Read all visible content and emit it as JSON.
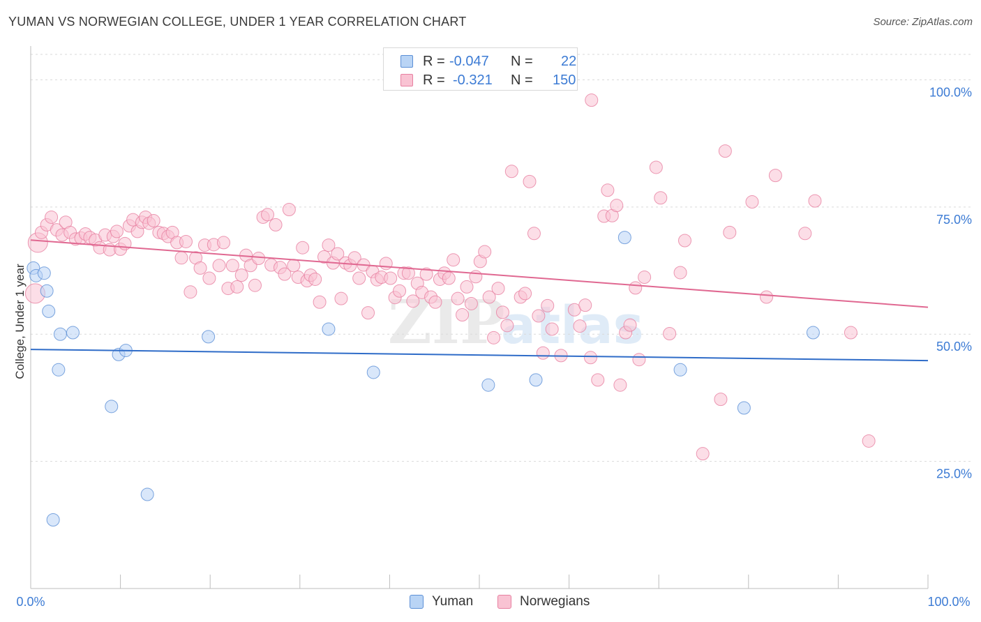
{
  "title": "YUMAN VS NORWEGIAN COLLEGE, UNDER 1 YEAR CORRELATION CHART",
  "source": "Source: ZipAtlas.com",
  "watermark": "ZIPatlas",
  "legend": {
    "rows": [
      {
        "name": "Yuman",
        "r_label": "R =",
        "r_value": "-0.047",
        "n_label": "N =",
        "n_value": "22",
        "fill": "#b9d4f5",
        "stroke": "#5b8fd6"
      },
      {
        "name": "Norwegians",
        "r_label": "R =",
        "r_value": "-0.321",
        "n_label": "N =",
        "n_value": "150",
        "fill": "#f9c3d3",
        "stroke": "#e77fa0"
      }
    ]
  },
  "chart_data": {
    "type": "scatter",
    "title": "YUMAN VS NORWEGIAN COLLEGE, UNDER 1 YEAR CORRELATION CHART",
    "xlabel": "",
    "ylabel": "College, Under 1 year",
    "xlim": [
      0,
      100
    ],
    "ylim": [
      0,
      105
    ],
    "x_tick_labels": [
      "0.0%",
      "100.0%"
    ],
    "y_tick_values": [
      25,
      50,
      75,
      100
    ],
    "y_tick_labels": [
      "25.0%",
      "50.0%",
      "75.0%",
      "100.0%"
    ],
    "grid": true,
    "series": [
      {
        "name": "Yuman",
        "color": "#5b8fd6",
        "fill": "#b9d4f5",
        "trend": {
          "x": [
            0,
            100
          ],
          "y": [
            47.0,
            44.8
          ],
          "color": "#2f6cc8"
        },
        "points": [
          [
            0.3,
            63.0
          ],
          [
            0.6,
            61.5
          ],
          [
            1.5,
            62.0
          ],
          [
            1.8,
            58.5
          ],
          [
            2.0,
            54.5
          ],
          [
            3.1,
            43.0
          ],
          [
            3.3,
            50.0
          ],
          [
            4.7,
            50.3
          ],
          [
            9.0,
            35.8
          ],
          [
            9.8,
            46.0
          ],
          [
            10.6,
            46.8
          ],
          [
            13.0,
            18.5
          ],
          [
            2.5,
            13.5
          ],
          [
            19.8,
            49.5
          ],
          [
            33.2,
            51.0
          ],
          [
            38.2,
            42.5
          ],
          [
            51.0,
            40.0
          ],
          [
            56.3,
            41.0
          ],
          [
            66.2,
            69.0
          ],
          [
            72.4,
            43.0
          ],
          [
            79.5,
            35.5
          ],
          [
            87.2,
            50.3
          ]
        ]
      },
      {
        "name": "Norwegians",
        "color": "#e77fa0",
        "fill": "#f9c3d3",
        "trend": {
          "x": [
            0,
            100
          ],
          "y": [
            68.5,
            55.3
          ],
          "color": "#e06891"
        },
        "points": [
          [
            0.5,
            58.0
          ],
          [
            0.8,
            68.0
          ],
          [
            1.2,
            70.0
          ],
          [
            1.8,
            71.5
          ],
          [
            2.3,
            73.0
          ],
          [
            2.9,
            70.5
          ],
          [
            3.5,
            69.5
          ],
          [
            3.9,
            72.0
          ],
          [
            4.4,
            70.0
          ],
          [
            5.0,
            68.7
          ],
          [
            5.6,
            68.9
          ],
          [
            6.1,
            69.7
          ],
          [
            6.6,
            69.0
          ],
          [
            7.2,
            68.5
          ],
          [
            7.7,
            67.0
          ],
          [
            8.3,
            69.5
          ],
          [
            8.8,
            66.6
          ],
          [
            9.2,
            69.2
          ],
          [
            9.6,
            70.2
          ],
          [
            10.0,
            66.7
          ],
          [
            10.5,
            67.8
          ],
          [
            11.0,
            71.3
          ],
          [
            11.4,
            72.5
          ],
          [
            11.9,
            70.2
          ],
          [
            12.4,
            72.0
          ],
          [
            12.8,
            73.0
          ],
          [
            13.2,
            71.8
          ],
          [
            13.7,
            72.3
          ],
          [
            14.3,
            70.0
          ],
          [
            14.8,
            69.8
          ],
          [
            15.3,
            69.2
          ],
          [
            15.8,
            70.0
          ],
          [
            16.3,
            68.0
          ],
          [
            16.8,
            65.0
          ],
          [
            17.3,
            68.2
          ],
          [
            17.8,
            58.3
          ],
          [
            18.4,
            65.0
          ],
          [
            18.9,
            63.0
          ],
          [
            19.4,
            67.5
          ],
          [
            19.9,
            61.0
          ],
          [
            20.4,
            67.6
          ],
          [
            21.0,
            63.5
          ],
          [
            21.5,
            68.0
          ],
          [
            22.0,
            59.0
          ],
          [
            22.5,
            63.5
          ],
          [
            23.0,
            59.3
          ],
          [
            23.5,
            61.6
          ],
          [
            24.0,
            65.5
          ],
          [
            24.5,
            63.5
          ],
          [
            25.0,
            59.6
          ],
          [
            25.4,
            64.9
          ],
          [
            25.9,
            73.0
          ],
          [
            26.4,
            73.5
          ],
          [
            26.8,
            63.6
          ],
          [
            27.3,
            71.5
          ],
          [
            27.8,
            63.1
          ],
          [
            28.3,
            61.8
          ],
          [
            28.8,
            74.5
          ],
          [
            29.3,
            63.5
          ],
          [
            29.8,
            61.2
          ],
          [
            30.3,
            67.0
          ],
          [
            30.8,
            60.5
          ],
          [
            31.2,
            61.6
          ],
          [
            31.7,
            60.8
          ],
          [
            32.2,
            56.3
          ],
          [
            32.7,
            65.2
          ],
          [
            33.2,
            67.5
          ],
          [
            33.7,
            64.0
          ],
          [
            34.2,
            65.8
          ],
          [
            34.6,
            57.0
          ],
          [
            35.1,
            64.0
          ],
          [
            35.6,
            63.5
          ],
          [
            36.1,
            65.0
          ],
          [
            36.6,
            61.0
          ],
          [
            37.1,
            63.6
          ],
          [
            37.6,
            54.2
          ],
          [
            38.1,
            62.3
          ],
          [
            38.6,
            60.7
          ],
          [
            39.1,
            61.2
          ],
          [
            39.6,
            63.9
          ],
          [
            40.1,
            61.0
          ],
          [
            40.6,
            57.2
          ],
          [
            41.1,
            58.5
          ],
          [
            41.6,
            62.0
          ],
          [
            42.1,
            62.0
          ],
          [
            42.6,
            56.5
          ],
          [
            43.1,
            60.0
          ],
          [
            43.6,
            58.2
          ],
          [
            44.1,
            61.8
          ],
          [
            44.6,
            57.3
          ],
          [
            45.1,
            56.3
          ],
          [
            45.6,
            60.8
          ],
          [
            46.1,
            62.0
          ],
          [
            46.6,
            61.0
          ],
          [
            47.1,
            64.6
          ],
          [
            47.6,
            57.0
          ],
          [
            48.1,
            53.8
          ],
          [
            48.6,
            59.3
          ],
          [
            49.1,
            56.0
          ],
          [
            49.6,
            61.3
          ],
          [
            50.1,
            64.3
          ],
          [
            50.6,
            66.2
          ],
          [
            51.1,
            57.3
          ],
          [
            51.6,
            49.3
          ],
          [
            52.1,
            59.0
          ],
          [
            52.6,
            54.3
          ],
          [
            53.1,
            51.7
          ],
          [
            53.6,
            82.0
          ],
          [
            54.6,
            57.3
          ],
          [
            55.1,
            58.0
          ],
          [
            55.6,
            80.0
          ],
          [
            56.1,
            69.8
          ],
          [
            56.6,
            53.6
          ],
          [
            57.1,
            46.3
          ],
          [
            57.6,
            55.6
          ],
          [
            58.1,
            51.0
          ],
          [
            59.1,
            45.8
          ],
          [
            60.6,
            54.8
          ],
          [
            61.2,
            51.6
          ],
          [
            61.8,
            55.7
          ],
          [
            62.4,
            45.4
          ],
          [
            62.5,
            96.0
          ],
          [
            63.2,
            41.0
          ],
          [
            63.9,
            73.2
          ],
          [
            64.3,
            78.3
          ],
          [
            64.8,
            73.3
          ],
          [
            65.3,
            75.3
          ],
          [
            65.7,
            40.0
          ],
          [
            66.3,
            50.3
          ],
          [
            66.8,
            51.8
          ],
          [
            67.4,
            59.1
          ],
          [
            67.8,
            45.0
          ],
          [
            68.4,
            61.2
          ],
          [
            69.7,
            82.8
          ],
          [
            70.2,
            76.8
          ],
          [
            71.2,
            50.1
          ],
          [
            72.4,
            62.1
          ],
          [
            72.9,
            68.4
          ],
          [
            74.9,
            26.5
          ],
          [
            76.9,
            37.2
          ],
          [
            77.4,
            86.0
          ],
          [
            77.9,
            70.0
          ],
          [
            80.4,
            76.0
          ],
          [
            82.0,
            57.3
          ],
          [
            83.0,
            81.2
          ],
          [
            86.3,
            69.8
          ],
          [
            87.4,
            76.2
          ],
          [
            91.4,
            50.3
          ],
          [
            93.4,
            29.0
          ]
        ]
      }
    ]
  }
}
